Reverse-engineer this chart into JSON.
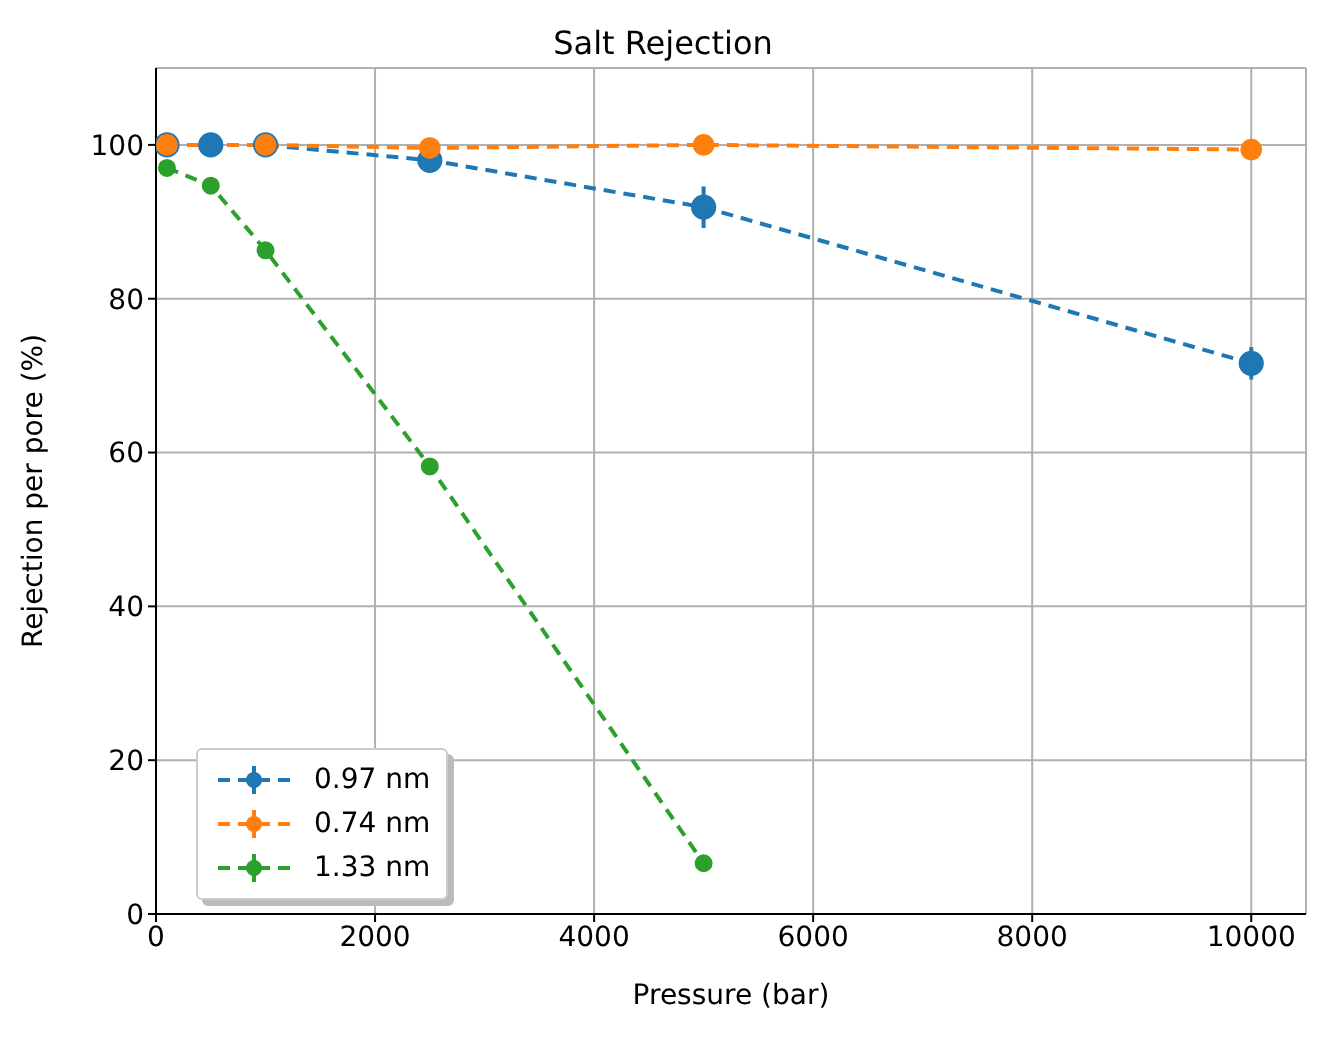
{
  "chart_data": {
    "type": "line",
    "title": "Salt Rejection",
    "xlabel": "Pressure (bar)",
    "ylabel": "Rejection per pore (%)",
    "xlim": [
      0,
      10500
    ],
    "xticks": [
      0,
      2000,
      4000,
      6000,
      8000,
      10000
    ],
    "ylim": [
      0,
      110
    ],
    "yticks": [
      0,
      20,
      40,
      60,
      80,
      100
    ],
    "grid": true,
    "legend": "bottom left",
    "marker": "circle",
    "line_style": "dashed",
    "series": [
      {
        "name": "0.97 nm",
        "color": "#1f77b4",
        "x": [
          100,
          500,
          1000,
          2500,
          5000,
          10000
        ],
        "values": [
          100,
          100,
          100,
          98,
          91.9,
          71.6
        ],
        "errors": [
          null,
          null,
          null,
          null,
          2.7,
          2.1
        ]
      },
      {
        "name": "0.74 nm",
        "color": "#ff7f0e",
        "x": [
          100,
          1000,
          2500,
          5000,
          10000
        ],
        "values": [
          100,
          100,
          99.6,
          100,
          99.4
        ]
      },
      {
        "name": "1.33 nm",
        "color": "#2ca02c",
        "x": [
          100,
          500,
          1000,
          2500,
          5000
        ],
        "values": [
          97,
          94.7,
          86.3,
          58.2,
          6.6
        ]
      }
    ]
  }
}
